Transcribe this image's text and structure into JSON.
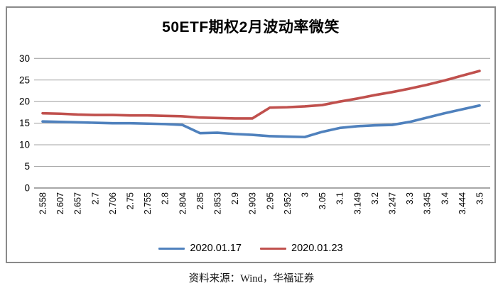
{
  "chart_data": {
    "type": "line",
    "title": "50ETF期权2月波动率微笑",
    "xlabel": "",
    "ylabel": "",
    "ylim": [
      0,
      30
    ],
    "yticks": [
      0,
      5,
      10,
      15,
      20,
      25,
      30
    ],
    "grid": "horizontal",
    "legend_position": "bottom",
    "categories": [
      "2.558",
      "2.607",
      "2.657",
      "2.7",
      "2.706",
      "2.75",
      "2.755",
      "2.8",
      "2.804",
      "2.85",
      "2.853",
      "2.9",
      "2.903",
      "2.95",
      "2.952",
      "3",
      "3.05",
      "3.1",
      "3.149",
      "3.2",
      "3.247",
      "3.3",
      "3.345",
      "3.4",
      "3.444",
      "3.5"
    ],
    "series": [
      {
        "name": "2020.01.17",
        "color": "#4F81BD",
        "values": [
          15.4,
          15.3,
          15.2,
          15.1,
          15.0,
          15.0,
          14.9,
          14.8,
          14.6,
          12.7,
          12.8,
          12.5,
          12.3,
          12.0,
          11.9,
          11.8,
          13.0,
          13.9,
          14.3,
          14.5,
          14.6,
          15.3,
          16.3,
          17.3,
          18.2,
          19.1
        ]
      },
      {
        "name": "2020.01.23",
        "color": "#C0504D",
        "values": [
          17.3,
          17.2,
          17.0,
          16.9,
          16.9,
          16.8,
          16.8,
          16.7,
          16.6,
          16.3,
          16.2,
          16.1,
          16.1,
          18.6,
          18.7,
          18.9,
          19.2,
          20.0,
          20.7,
          21.5,
          22.2,
          23.0,
          23.9,
          24.9,
          26.0,
          27.1
        ]
      }
    ]
  },
  "footer": {
    "source_text": "资料来源：Wind，华福证券"
  }
}
